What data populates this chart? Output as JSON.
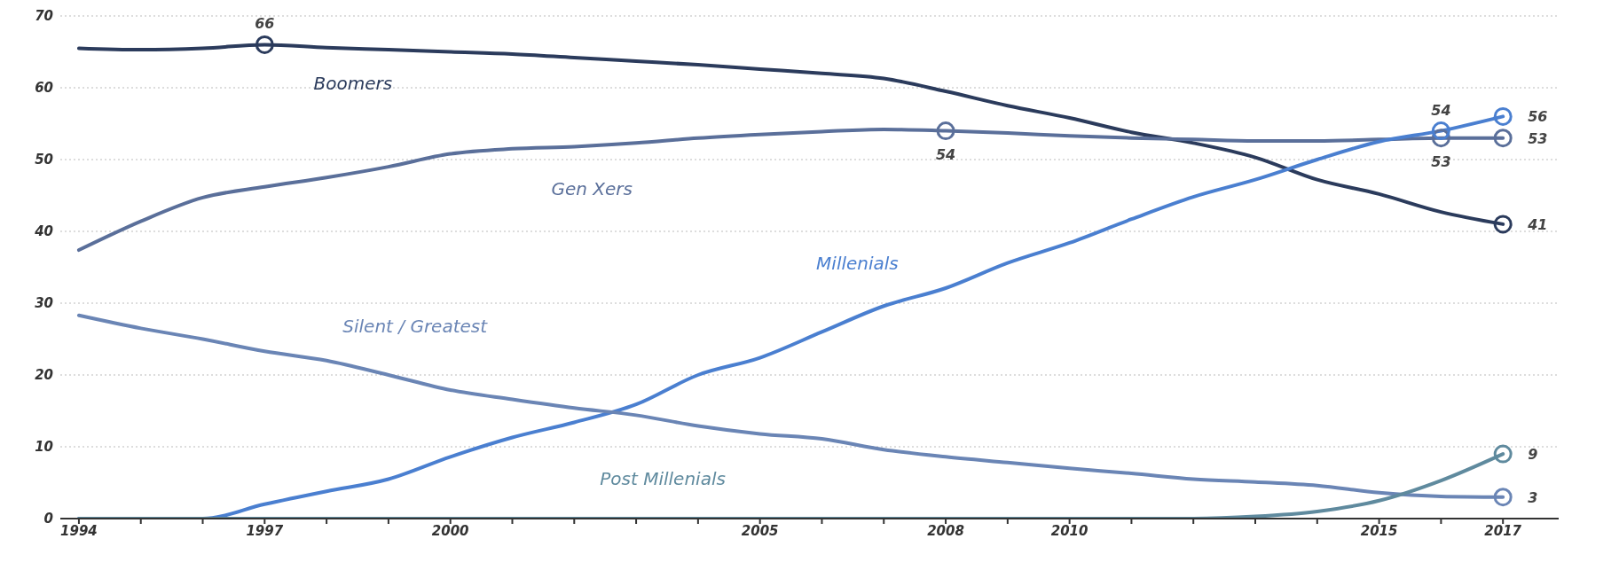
{
  "chart_data": {
    "type": "line",
    "x": [
      1994,
      1995,
      1996,
      1997,
      1998,
      1999,
      2000,
      2001,
      2002,
      2003,
      2004,
      2005,
      2006,
      2007,
      2008,
      2009,
      2010,
      2011,
      2012,
      2013,
      2014,
      2015,
      2016,
      2017
    ],
    "series": [
      {
        "name": "Boomers",
        "color": "#2b3b5c",
        "values": [
          65.5,
          65.3,
          65.5,
          66,
          65.6,
          65.3,
          65,
          64.7,
          64.2,
          63.7,
          63.2,
          62.6,
          62,
          61.3,
          59.5,
          57.5,
          55.8,
          53.8,
          52.3,
          50.3,
          47.2,
          45.2,
          42.7,
          41
        ],
        "value_labels": [
          null,
          null,
          null,
          "66",
          null,
          null,
          null,
          null,
          null,
          null,
          null,
          null,
          null,
          null,
          null,
          null,
          null,
          null,
          null,
          null,
          null,
          null,
          null,
          "41"
        ]
      },
      {
        "name": "Gen Xers",
        "color": "#5a6f9a",
        "values": [
          37.4,
          41.4,
          44.7,
          46.2,
          47.5,
          49,
          50.8,
          51.5,
          51.8,
          52.3,
          53,
          53.5,
          53.9,
          54.2,
          54,
          53.7,
          53.3,
          53,
          52.8,
          52.6,
          52.6,
          52.8,
          53,
          53
        ],
        "value_labels": [
          null,
          null,
          null,
          null,
          null,
          null,
          null,
          null,
          null,
          null,
          null,
          null,
          null,
          null,
          "54",
          null,
          null,
          null,
          null,
          null,
          null,
          null,
          "53",
          "53"
        ]
      },
      {
        "name": "Millenials",
        "color": "#4a7fd0",
        "values": [
          0,
          0,
          0,
          2,
          3.8,
          5.5,
          8.6,
          11.3,
          13.4,
          15.9,
          20,
          22.4,
          26,
          29.6,
          32.1,
          35.6,
          38.4,
          41.7,
          44.8,
          47.2,
          50,
          52.5,
          54,
          56
        ],
        "value_labels": [
          null,
          null,
          null,
          null,
          null,
          null,
          null,
          null,
          null,
          null,
          null,
          null,
          null,
          null,
          null,
          null,
          null,
          null,
          null,
          null,
          null,
          null,
          "54",
          "56"
        ]
      },
      {
        "name": "Silent / Greatest",
        "color": "#6a85b5",
        "values": [
          28.3,
          26.5,
          25,
          23.3,
          22,
          20,
          17.9,
          16.6,
          15.4,
          14.4,
          12.9,
          11.8,
          11.1,
          9.6,
          8.6,
          7.8,
          7,
          6.3,
          5.5,
          5.1,
          4.6,
          3.6,
          3.1,
          3
        ],
        "value_labels": [
          null,
          null,
          null,
          null,
          null,
          null,
          null,
          null,
          null,
          null,
          null,
          null,
          null,
          null,
          null,
          null,
          null,
          null,
          null,
          null,
          null,
          null,
          null,
          "3"
        ]
      },
      {
        "name": "Post Millenials",
        "color": "#5f8a9e",
        "values": [
          0,
          0,
          0,
          0,
          0,
          0,
          0,
          0,
          0,
          0,
          0,
          0,
          0,
          0,
          0,
          0,
          0,
          0,
          0,
          0.3,
          1,
          2.5,
          5.3,
          9
        ],
        "value_labels": [
          null,
          null,
          null,
          null,
          null,
          null,
          null,
          null,
          null,
          null,
          null,
          null,
          null,
          null,
          null,
          null,
          null,
          null,
          null,
          null,
          null,
          null,
          null,
          "9"
        ]
      }
    ],
    "xlim": [
      1993.7,
      2017.9
    ],
    "xticks": [
      {
        "value": 1994,
        "label": "1994"
      },
      {
        "value": 1995,
        "label": null
      },
      {
        "value": 1996,
        "label": null
      },
      {
        "value": 1997,
        "label": "1997"
      },
      {
        "value": 1998,
        "label": null
      },
      {
        "value": 1999,
        "label": null
      },
      {
        "value": 2000,
        "label": "2000"
      },
      {
        "value": 2001,
        "label": null
      },
      {
        "value": 2002,
        "label": null
      },
      {
        "value": 2003,
        "label": null
      },
      {
        "value": 2004,
        "label": null
      },
      {
        "value": 2005,
        "label": "2005"
      },
      {
        "value": 2006,
        "label": null
      },
      {
        "value": 2007,
        "label": null
      },
      {
        "value": 2008,
        "label": "2008"
      },
      {
        "value": 2009,
        "label": null
      },
      {
        "value": 2010,
        "label": "2010"
      },
      {
        "value": 2011,
        "label": null
      },
      {
        "value": 2012,
        "label": null
      },
      {
        "value": 2013,
        "label": null
      },
      {
        "value": 2014,
        "label": null
      },
      {
        "value": 2015,
        "label": "2015"
      },
      {
        "value": 2016,
        "label": null
      },
      {
        "value": 2017,
        "label": "2017"
      }
    ],
    "ylim": [
      0,
      70
    ],
    "yticks": [
      0,
      10,
      20,
      30,
      40,
      50,
      60,
      70
    ],
    "grid": "y",
    "line_style": "solid"
  }
}
